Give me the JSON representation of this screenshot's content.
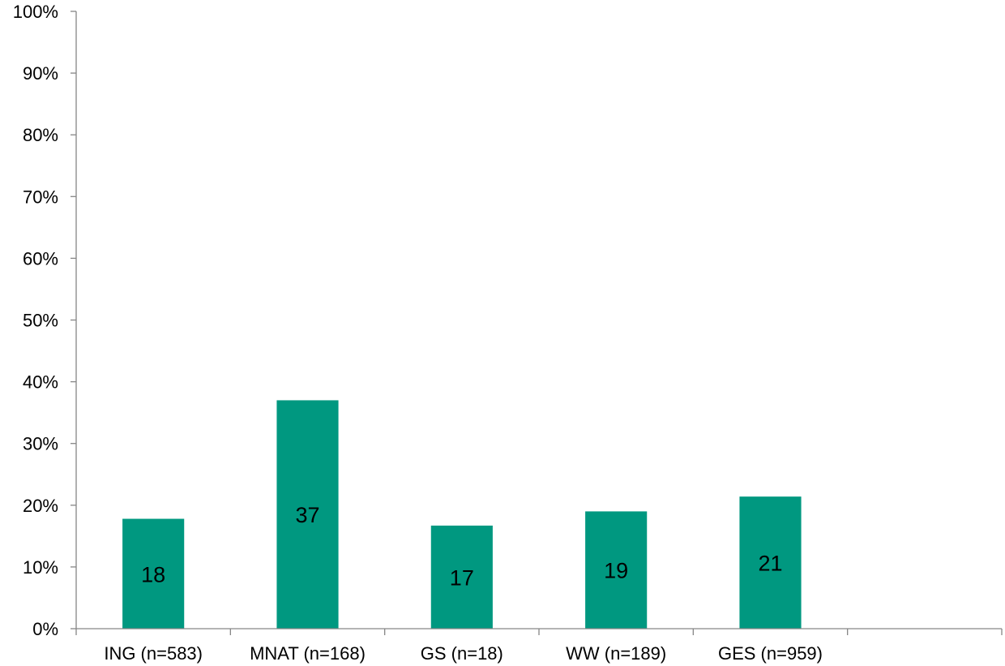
{
  "chart_data": {
    "type": "bar",
    "categories": [
      "ING (n=583)",
      "MNAT (n=168)",
      "GS (n=18)",
      "WW (n=189)",
      "GES (n=959)",
      ""
    ],
    "values": [
      17.8,
      37.0,
      16.7,
      19.0,
      21.4,
      null
    ],
    "data_labels": [
      "18",
      "37",
      "17",
      "19",
      "21",
      ""
    ],
    "ylim": [
      0,
      100
    ],
    "yticks": [
      0,
      10,
      20,
      30,
      40,
      50,
      60,
      70,
      80,
      90,
      100
    ],
    "ytick_labels": [
      "0%",
      "10%",
      "20%",
      "30%",
      "40%",
      "50%",
      "60%",
      "70%",
      "80%",
      "90%",
      "100%"
    ],
    "bar_color": "#009880",
    "axis_color": "#868686",
    "grid": false,
    "legend": "none",
    "title": "",
    "xlabel": "",
    "ylabel": ""
  }
}
